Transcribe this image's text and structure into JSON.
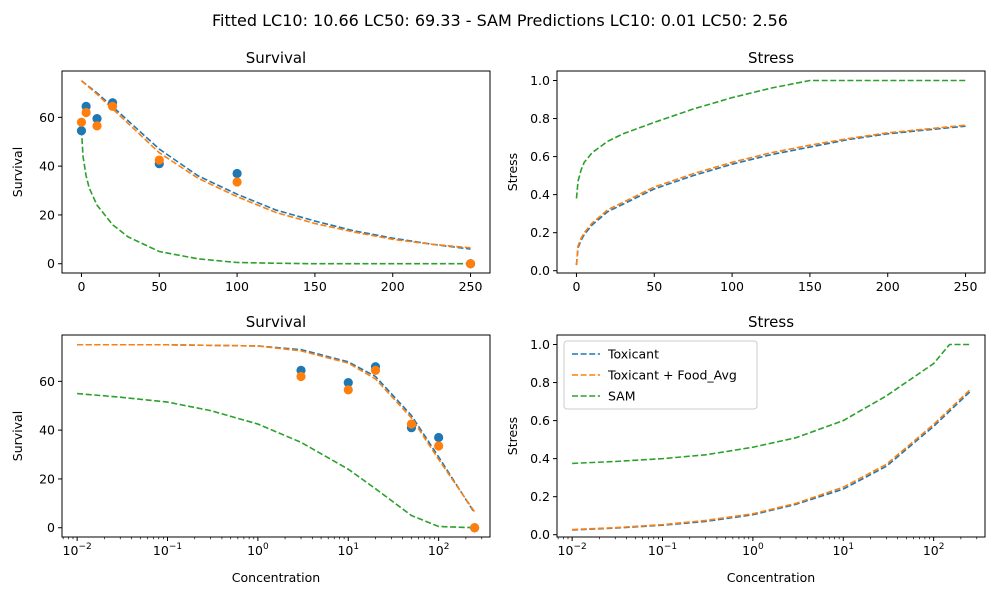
{
  "figure": {
    "suptitle": "Fitted LC10: 10.66 LC50: 69.33 - SAM Predictions LC10: 0.01 LC50: 2.56"
  },
  "colors": {
    "toxicant": "#1f77b4",
    "food": "#ff7f0e",
    "sam": "#2ca02c"
  },
  "chart_data": [
    {
      "type": "scatter",
      "title": "Survival",
      "xlabel": "",
      "ylabel": "Survival",
      "xscale": "linear",
      "xlim": [
        -12.5,
        262.5
      ],
      "ylim": [
        -3.8,
        79
      ],
      "xticks": [
        0,
        50,
        100,
        150,
        200,
        250
      ],
      "yticks": [
        0,
        20,
        40,
        60
      ],
      "grid": false,
      "series": [
        {
          "kind": "points",
          "color_key": "toxicant",
          "x": [
            0,
            3,
            10,
            20,
            50,
            100,
            250
          ],
          "y": [
            54.5,
            64.5,
            59.5,
            66,
            41,
            37,
            0
          ]
        },
        {
          "kind": "points",
          "color_key": "food",
          "x": [
            0,
            3,
            10,
            20,
            50,
            100,
            250
          ],
          "y": [
            58,
            62,
            56.5,
            64.5,
            42.5,
            33.5,
            0
          ]
        },
        {
          "kind": "curve",
          "color_key": "toxicant",
          "x": [
            0,
            10,
            25,
            50,
            75,
            100,
            125,
            150,
            175,
            200,
            225,
            250
          ],
          "y": [
            75,
            70,
            61.5,
            47,
            36,
            28.5,
            22,
            17.5,
            13.5,
            10.5,
            8,
            6
          ]
        },
        {
          "kind": "curve",
          "color_key": "food",
          "x": [
            0,
            10,
            25,
            50,
            75,
            100,
            125,
            150,
            175,
            200,
            225,
            250
          ],
          "y": [
            75,
            69.5,
            60.5,
            45.5,
            35,
            27.5,
            21,
            16.5,
            13,
            10,
            8,
            6.5
          ]
        },
        {
          "kind": "curve",
          "color_key": "sam",
          "x": [
            0.01,
            1,
            3,
            5,
            10,
            20,
            30,
            50,
            75,
            100,
            125,
            150,
            200,
            250
          ],
          "y": [
            55,
            44,
            36,
            31,
            24,
            16,
            11,
            5,
            2,
            0.5,
            0.2,
            0,
            0,
            0
          ]
        }
      ]
    },
    {
      "type": "line",
      "title": "Stress",
      "xlabel": "",
      "ylabel": "Stress",
      "xscale": "linear",
      "xlim": [
        -12.5,
        262.5
      ],
      "ylim": [
        -0.012,
        1.05
      ],
      "xticks": [
        0,
        50,
        100,
        150,
        200,
        250
      ],
      "yticks": [
        0.0,
        0.2,
        0.4,
        0.6,
        0.8,
        1.0
      ],
      "grid": false,
      "series": [
        {
          "kind": "curve",
          "color_key": "toxicant",
          "x": [
            0.01,
            1,
            3,
            5,
            10,
            20,
            30,
            50,
            75,
            100,
            125,
            150,
            175,
            200,
            225,
            250
          ],
          "y": [
            0.03,
            0.12,
            0.16,
            0.19,
            0.24,
            0.31,
            0.35,
            0.43,
            0.5,
            0.56,
            0.61,
            0.65,
            0.69,
            0.72,
            0.74,
            0.76
          ]
        },
        {
          "kind": "curve",
          "color_key": "food",
          "x": [
            0.01,
            1,
            3,
            5,
            10,
            20,
            30,
            50,
            75,
            100,
            125,
            150,
            175,
            200,
            225,
            250
          ],
          "y": [
            0.03,
            0.13,
            0.17,
            0.2,
            0.25,
            0.32,
            0.36,
            0.44,
            0.51,
            0.57,
            0.62,
            0.66,
            0.695,
            0.725,
            0.745,
            0.765
          ]
        },
        {
          "kind": "curve",
          "color_key": "sam",
          "x": [
            0.01,
            1,
            3,
            5,
            10,
            20,
            30,
            50,
            75,
            100,
            125,
            150,
            175,
            200,
            225,
            250
          ],
          "y": [
            0.38,
            0.47,
            0.53,
            0.57,
            0.62,
            0.68,
            0.72,
            0.78,
            0.85,
            0.91,
            0.96,
            1.0,
            1.0,
            1.0,
            1.0,
            1.0
          ]
        }
      ]
    },
    {
      "type": "scatter",
      "title": "Survival",
      "xlabel": "Concentration",
      "ylabel": "Survival",
      "xscale": "log",
      "xlim": [
        0.0068,
        370
      ],
      "ylim": [
        -3.8,
        79
      ],
      "xticks": [
        0.01,
        0.1,
        1,
        10,
        100
      ],
      "xtick_labels": [
        {
          "base": "10",
          "exp": "−2"
        },
        {
          "base": "10",
          "exp": "−1"
        },
        {
          "base": "10",
          "exp": "0"
        },
        {
          "base": "10",
          "exp": "1"
        },
        {
          "base": "10",
          "exp": "2"
        }
      ],
      "yticks": [
        0,
        20,
        40,
        60
      ],
      "grid": false,
      "series": [
        {
          "kind": "points",
          "color_key": "toxicant",
          "x": [
            3,
            10,
            20,
            50,
            100,
            250
          ],
          "y": [
            64.5,
            59.5,
            66,
            41,
            37,
            0
          ]
        },
        {
          "kind": "points",
          "color_key": "food",
          "x": [
            3,
            10,
            20,
            50,
            100,
            250
          ],
          "y": [
            62,
            56.5,
            64.5,
            42.5,
            33.5,
            0
          ]
        },
        {
          "kind": "curve",
          "color_key": "toxicant",
          "x": [
            0.01,
            0.1,
            1,
            3,
            10,
            20,
            50,
            100,
            250
          ],
          "y": [
            75,
            75,
            74.5,
            73,
            68,
            62,
            46,
            29,
            6
          ]
        },
        {
          "kind": "curve",
          "color_key": "food",
          "x": [
            0.01,
            0.1,
            1,
            3,
            10,
            20,
            50,
            100,
            250
          ],
          "y": [
            75,
            75,
            74.5,
            72.5,
            67.5,
            61,
            45,
            28,
            6.5
          ]
        },
        {
          "kind": "curve",
          "color_key": "sam",
          "x": [
            0.01,
            0.03,
            0.1,
            0.3,
            1,
            3,
            10,
            20,
            50,
            100,
            250
          ],
          "y": [
            55,
            53.5,
            51.5,
            48,
            42.5,
            35,
            24,
            16,
            5,
            0.5,
            0
          ]
        }
      ]
    },
    {
      "type": "line",
      "title": "Stress",
      "xlabel": "Concentration",
      "ylabel": "Stress",
      "xscale": "log",
      "xlim": [
        0.0068,
        370
      ],
      "ylim": [
        -0.012,
        1.05
      ],
      "xticks": [
        0.01,
        0.1,
        1,
        10,
        100
      ],
      "xtick_labels": [
        {
          "base": "10",
          "exp": "−2"
        },
        {
          "base": "10",
          "exp": "−1"
        },
        {
          "base": "10",
          "exp": "0"
        },
        {
          "base": "10",
          "exp": "1"
        },
        {
          "base": "10",
          "exp": "2"
        }
      ],
      "yticks": [
        0.0,
        0.2,
        0.4,
        0.6,
        0.8,
        1.0
      ],
      "grid": false,
      "legend": {
        "placement": "upper-left",
        "entries": [
          {
            "label": "Toxicant",
            "color_key": "toxicant"
          },
          {
            "label": "Toxicant + Food_Avg",
            "color_key": "food"
          },
          {
            "label": "SAM",
            "color_key": "sam"
          }
        ]
      },
      "series": [
        {
          "kind": "curve",
          "color_key": "toxicant",
          "x": [
            0.01,
            0.03,
            0.1,
            0.3,
            1,
            3,
            10,
            30,
            100,
            250
          ],
          "y": [
            0.025,
            0.035,
            0.05,
            0.07,
            0.105,
            0.16,
            0.24,
            0.36,
            0.57,
            0.75
          ]
        },
        {
          "kind": "curve",
          "color_key": "food",
          "x": [
            0.01,
            0.03,
            0.1,
            0.3,
            1,
            3,
            10,
            30,
            100,
            250
          ],
          "y": [
            0.027,
            0.037,
            0.053,
            0.075,
            0.11,
            0.165,
            0.25,
            0.37,
            0.58,
            0.76
          ]
        },
        {
          "kind": "curve",
          "color_key": "sam",
          "x": [
            0.01,
            0.03,
            0.1,
            0.3,
            1,
            3,
            10,
            30,
            100,
            150,
            250
          ],
          "y": [
            0.375,
            0.385,
            0.4,
            0.42,
            0.46,
            0.51,
            0.6,
            0.73,
            0.9,
            1.0,
            1.0
          ]
        }
      ]
    }
  ]
}
